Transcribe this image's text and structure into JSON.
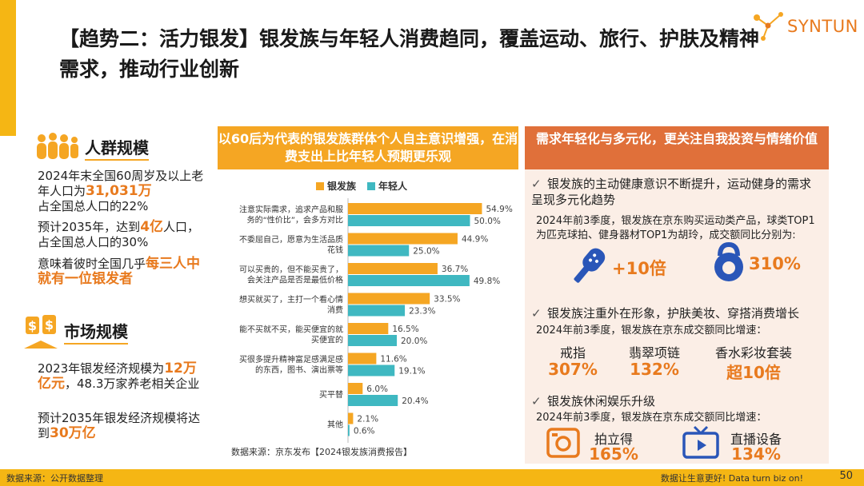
{
  "title": "【趋势二：活力银发】银发族与年轻人消费趋同，覆盖运动、旅行、护肤及精神需求，推动行业创新",
  "logo": "SYNTUN",
  "left": {
    "crowd_title": "人群规模",
    "crowd_p1_pre": "2024年末全国60周岁及以上老年人口为",
    "crowd_p1_hl": "31,031万",
    "crowd_p1_post": "占全国总人口的22%",
    "crowd_p2_pre": "预计2035年，达到",
    "crowd_p2_hl": "4亿",
    "crowd_p2_post": "人口，占全国总人口的30%",
    "crowd_p3_pre": "意味着彼时全国几乎",
    "crowd_p3_hl": "每三人中就有一位银发者",
    "market_title": "市场规模",
    "market_p1_pre": "2023年银发经济规模为",
    "market_p1_hl": "12万亿元",
    "market_p1_post": "，48.3万家养老相关企业",
    "market_p2_pre": "预计2035年银发经济规模将达到",
    "market_p2_hl": "30万亿"
  },
  "middle": {
    "header": "以60后为代表的银发族群体个人自主意识增强，在消费支出上比年轻人预期更乐观",
    "source": "数据来源：京东发布【2024银发族消费报告】"
  },
  "chart_data": {
    "type": "bar",
    "orientation": "horizontal",
    "categories": [
      [
        "注意实际需求，追求产品和服",
        "务的“性价比”，会多方对比"
      ],
      [
        "不委屈自己，愿意为生活品质",
        "花钱"
      ],
      [
        "可以买贵的，但不能买贵了，",
        "会关注产品是否是最低价格"
      ],
      [
        "想买就买了，主打一个看心情",
        "消费"
      ],
      [
        "能不买就不买，能买便宜的就",
        "买便宜的"
      ],
      [
        "买很多提升精神富足感满足感",
        "的东西，图书、演出票等"
      ],
      [
        "买平替"
      ],
      [
        "其他"
      ]
    ],
    "series": [
      {
        "name": "银发族",
        "color": "#f5a623",
        "values": [
          54.9,
          44.9,
          36.7,
          33.5,
          16.5,
          11.6,
          6.0,
          2.1
        ]
      },
      {
        "name": "年轻人",
        "color": "#3fb8c1",
        "values": [
          50.0,
          25.0,
          49.8,
          23.3,
          20.0,
          19.1,
          20.4,
          0.6
        ]
      }
    ],
    "xlim": [
      0,
      60
    ],
    "unit": "%"
  },
  "right": {
    "header": "需求年轻化与多元化，更关注自我投资与情绪价值",
    "b1": "银发族的主动健康意识不断提升，运动健身的需求呈现多元化趋势",
    "b1_note": "2024年前3季度，银发族在京东购买运动类产品，球类TOP1为匹克球拍、健身器材TOP1为胡玲，成交额同比分别为:",
    "b1_v1": "+10倍",
    "b1_v2": "310%",
    "b2": "银发族注重外在形象，护肤美妆、穿搭消费增长",
    "b2_note": "2024年前3季度，银发族在京东成交额同比增速：",
    "b2_items": [
      {
        "label": "戒指",
        "value": "307%"
      },
      {
        "label": "翡翠项链",
        "value": "132%"
      },
      {
        "label": "香水彩妆套装",
        "value": "超10倍"
      }
    ],
    "b3": "银发族休闲娱乐升级",
    "b3_note": "2024年前3季度，银发族在京东成交额同比增速：",
    "b3_items": [
      {
        "label": "拍立得",
        "value": "165%"
      },
      {
        "label": "直播设备",
        "value": "134%"
      }
    ]
  },
  "footer": {
    "left": "数据来源：公开数据整理",
    "right": "数据让生意更好! Data turn biz on!",
    "page": "50"
  }
}
